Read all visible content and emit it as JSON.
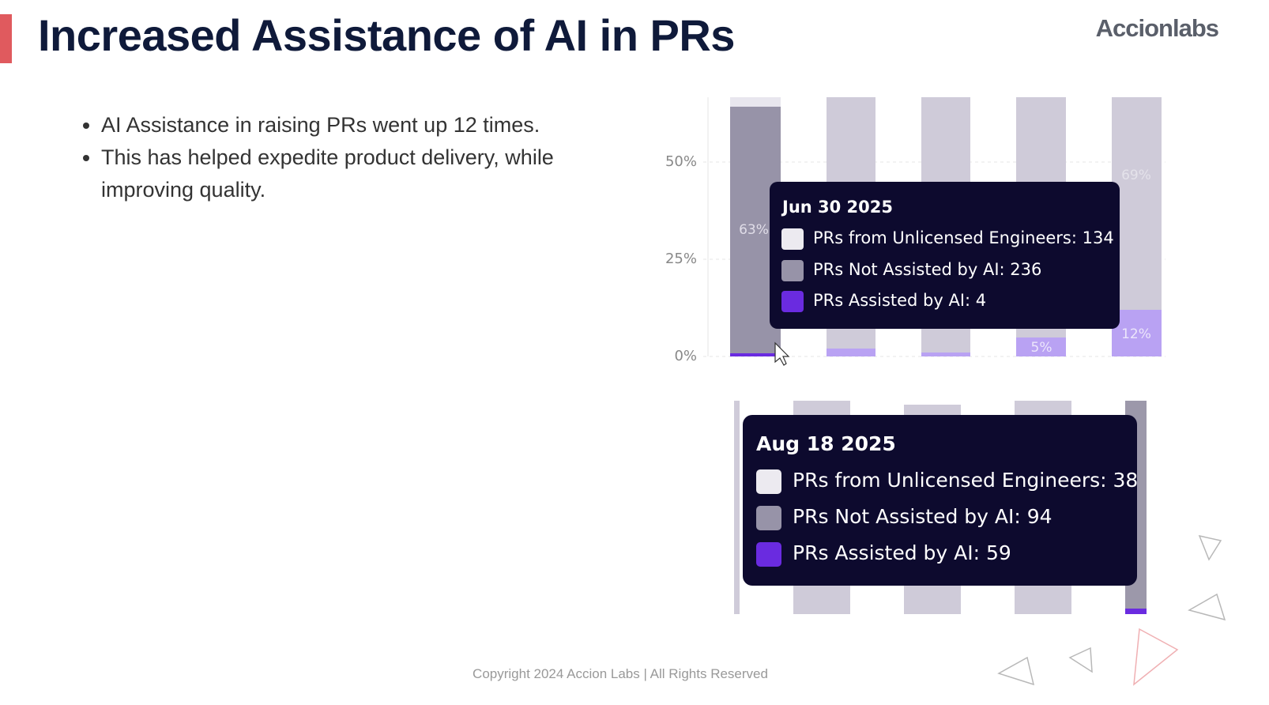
{
  "header": {
    "title": "Increased Assistance of AI in PRs",
    "logo": "Accionlabs"
  },
  "bullets": [
    "AI Assistance in raising PRs went up 12 times.",
    "This has helped expedite product delivery, while improving quality."
  ],
  "chart_screenshot_1": {
    "yticks": [
      "50%",
      "25%",
      "0%"
    ],
    "bar_labels": [
      "63%",
      "69%",
      "5%",
      "12%"
    ],
    "tooltip": {
      "date": "Jun 30 2025",
      "rows": [
        "PRs from Unlicensed Engineers: 134",
        "PRs Not Assisted by AI: 236",
        "PRs Assisted by AI: 4"
      ]
    }
  },
  "chart_screenshot_2": {
    "tooltip": {
      "date": "Aug 18 2025",
      "rows": [
        "PRs from Unlicensed Engineers: 38",
        "PRs Not Assisted by AI: 94",
        "PRs Assisted by AI: 59"
      ]
    }
  },
  "footer": "Copyright 2024 Accion Labs | All Rights Reserved"
}
